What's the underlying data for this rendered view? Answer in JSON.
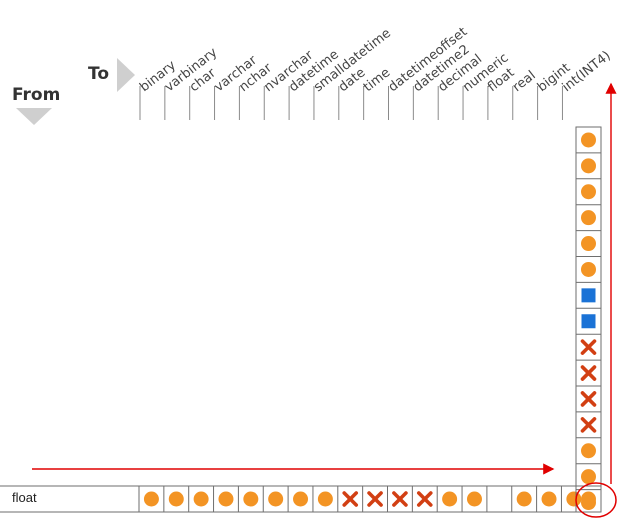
{
  "to_label": "To",
  "from_label": "From",
  "row_label": "float",
  "target_types": [
    "binary",
    "varbinary",
    "char",
    "varchar",
    "nchar",
    "nvarchar",
    "datetime",
    "smalldatetime",
    "date",
    "time",
    "datetimeoffset",
    "datetime2",
    "decimal",
    "numeric",
    "float",
    "real",
    "bigint",
    "int(INT4)"
  ],
  "row_cells": [
    "circle",
    "circle",
    "circle",
    "circle",
    "circle",
    "circle",
    "circle",
    "circle",
    "x",
    "x",
    "x",
    "x",
    "circle",
    "circle",
    "empty",
    "circle",
    "circle",
    "circle"
  ],
  "column_cells": [
    "circle",
    "circle",
    "circle",
    "circle",
    "circle",
    "circle",
    "square",
    "square",
    "x",
    "x",
    "x",
    "x",
    "circle",
    "circle",
    "circle"
  ],
  "colors": {
    "circle": "#f39424",
    "x": "#d23f13",
    "square": "#1a72d6",
    "arrow": "#e00000",
    "grid": "#6e6e6e",
    "header_text": "#444444"
  }
}
